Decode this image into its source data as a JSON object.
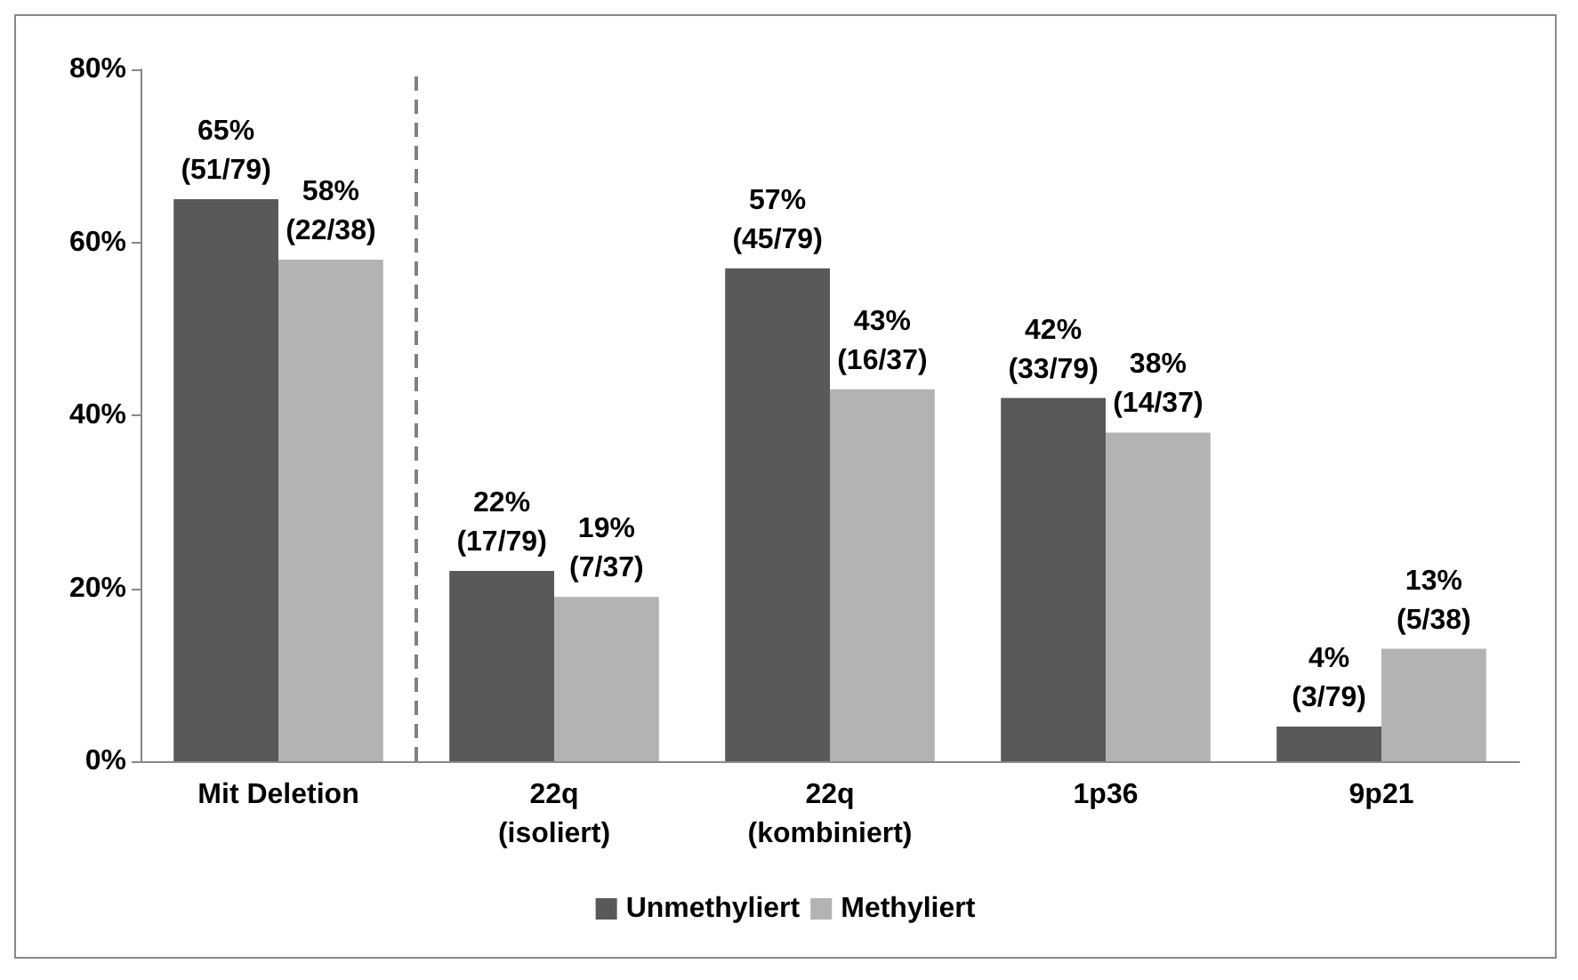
{
  "chart_data": {
    "type": "bar",
    "categories": [
      "Mit Deletion",
      "22q\n(isoliert)",
      "22q\n(kombiniert)",
      "1p36",
      "9p21"
    ],
    "series": [
      {
        "name": "Unmethyliert",
        "color": "#595959",
        "values": [
          65,
          22,
          57,
          42,
          4
        ],
        "value_labels": [
          "65%\n(51/79)",
          "22%\n(17/79)",
          "57%\n(45/79)",
          "42%\n(33/79)",
          "4%\n(3/79)"
        ]
      },
      {
        "name": "Methyliert",
        "color": "#b3b3b3",
        "values": [
          58,
          19,
          43,
          38,
          13
        ],
        "value_labels": [
          "58%\n(22/38)",
          "19%\n(7/37)",
          "43%\n(16/37)",
          "38%\n(14/37)",
          "13%\n(5/38)"
        ]
      }
    ],
    "ylim": [
      0,
      80
    ],
    "yticks": [
      {
        "value": 0,
        "label": "0%"
      },
      {
        "value": 20,
        "label": "20%"
      },
      {
        "value": 40,
        "label": "40%"
      },
      {
        "value": 60,
        "label": "60%"
      },
      {
        "value": 80,
        "label": "80%"
      }
    ],
    "legend": "bottom"
  }
}
